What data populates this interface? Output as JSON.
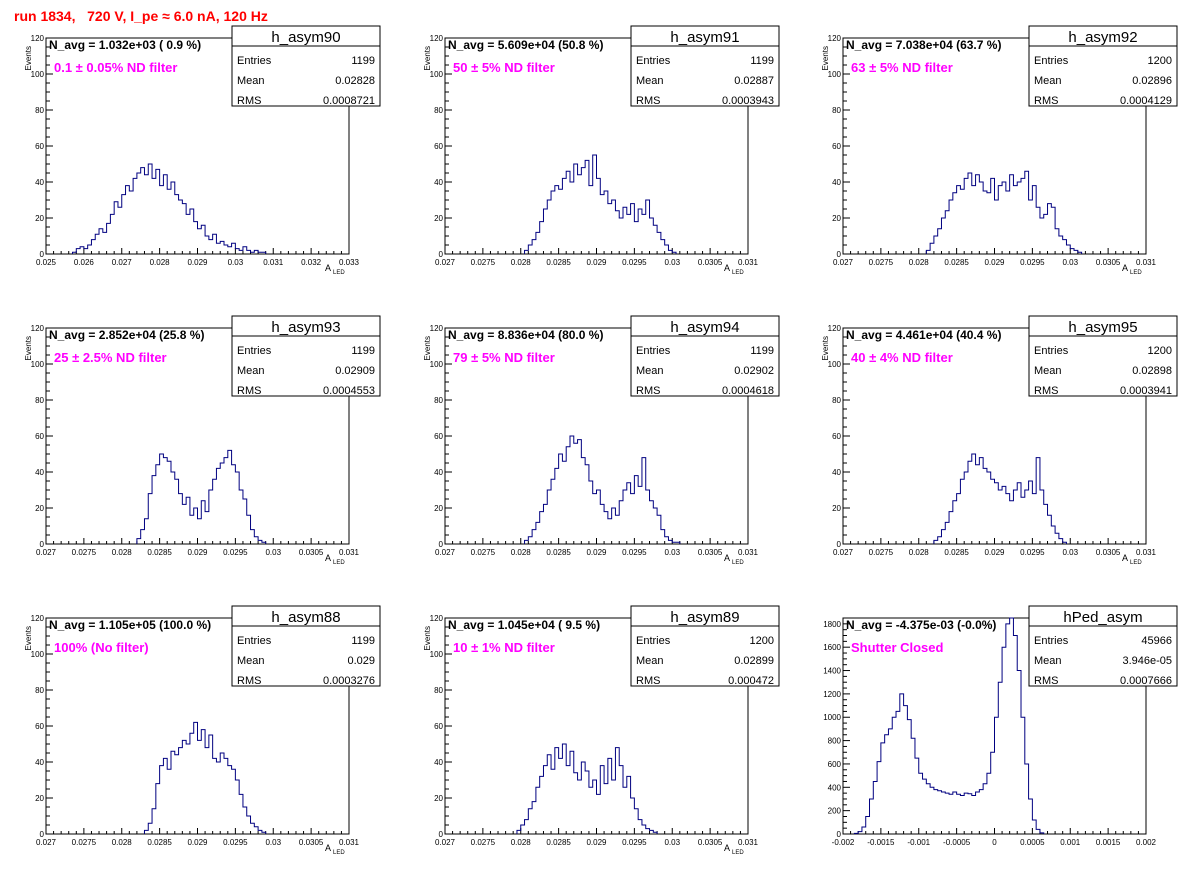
{
  "title": "run 1834,   720 V, I_pe ≈ 6.0 nA, 120 Hz",
  "colors": {
    "histogram": "#000080",
    "title": "#ff0000",
    "annotation": "#ff00ff",
    "frame": "#000000"
  },
  "chart_data": [
    {
      "type": "bar",
      "histname": "h_asym90",
      "stats": {
        "Entries": "1199",
        "Mean": "0.02828",
        "RMS": "0.0008721"
      },
      "navg_label": "N_avg = 1.032e+03 ( 0.9 %)",
      "filter_label": "0.1 ± 0.05% ND filter",
      "ylabel": "Events",
      "xlabel": "A",
      "xlabel_sub": "LED",
      "xlim": [
        0.025,
        0.033
      ],
      "ylim": [
        0,
        120
      ],
      "xticks": [
        0.025,
        0.026,
        0.027,
        0.028,
        0.029,
        0.03,
        0.031,
        0.032,
        0.033
      ],
      "xtick_labels": [
        "0.025",
        "0.026",
        "0.027",
        "0.028",
        "0.029",
        "0.03",
        "0.031",
        "0.032",
        "0.033"
      ],
      "yticks": [
        0,
        20,
        40,
        60,
        80,
        100,
        120
      ],
      "ytick_labels": [
        "0",
        "20",
        "40",
        "60",
        "80",
        "100",
        "120"
      ],
      "bin_start": 0.0257,
      "bin_width": 0.0001,
      "counts": [
        1,
        3,
        4,
        3,
        5,
        8,
        11,
        14,
        12,
        17,
        22,
        29,
        26,
        33,
        38,
        35,
        42,
        45,
        48,
        44,
        50,
        42,
        47,
        38,
        44,
        36,
        40,
        33,
        30,
        28,
        22,
        25,
        18,
        14,
        16,
        10,
        8,
        11,
        6,
        7,
        5,
        4,
        6,
        3,
        2,
        4,
        2,
        1,
        2,
        1,
        1
      ]
    },
    {
      "type": "bar",
      "histname": "h_asym91",
      "stats": {
        "Entries": "1199",
        "Mean": "0.02887",
        "RMS": "0.0003943"
      },
      "navg_label": "N_avg = 5.609e+04 (50.8 %)",
      "filter_label": "50 ± 5% ND filter",
      "ylabel": "Events",
      "xlabel": "A",
      "xlabel_sub": "LED",
      "xlim": [
        0.027,
        0.031
      ],
      "ylim": [
        0,
        120
      ],
      "xticks": [
        0.027,
        0.0275,
        0.028,
        0.0285,
        0.029,
        0.0295,
        0.03,
        0.0305,
        0.031
      ],
      "xtick_labels": [
        "0.027",
        "0.0275",
        "0.028",
        "0.0285",
        "0.029",
        "0.0295",
        "0.03",
        "0.0305",
        "0.031"
      ],
      "yticks": [
        0,
        20,
        40,
        60,
        80,
        100,
        120
      ],
      "ytick_labels": [
        "0",
        "20",
        "40",
        "60",
        "80",
        "100",
        "120"
      ],
      "bin_start": 0.02805,
      "bin_width": 5e-05,
      "counts": [
        2,
        5,
        8,
        12,
        18,
        25,
        30,
        35,
        38,
        36,
        42,
        46,
        40,
        50,
        44,
        48,
        52,
        38,
        55,
        42,
        33,
        35,
        28,
        30,
        24,
        20,
        26,
        22,
        28,
        18,
        25,
        22,
        30,
        20,
        16,
        12,
        8,
        5,
        2,
        1
      ]
    },
    {
      "type": "bar",
      "histname": "h_asym92",
      "stats": {
        "Entries": "1200",
        "Mean": "0.02896",
        "RMS": "0.0004129"
      },
      "navg_label": "N_avg = 7.038e+04 (63.7 %)",
      "filter_label": "63 ± 5% ND filter",
      "ylabel": "Events",
      "xlabel": "A",
      "xlabel_sub": "LED",
      "xlim": [
        0.027,
        0.031
      ],
      "ylim": [
        0,
        120
      ],
      "xticks": [
        0.027,
        0.0275,
        0.028,
        0.0285,
        0.029,
        0.0295,
        0.03,
        0.0305,
        0.031
      ],
      "xtick_labels": [
        "0.027",
        "0.0275",
        "0.028",
        "0.0285",
        "0.029",
        "0.0295",
        "0.03",
        "0.0305",
        "0.031"
      ],
      "yticks": [
        0,
        20,
        40,
        60,
        80,
        100,
        120
      ],
      "ytick_labels": [
        "0",
        "20",
        "40",
        "60",
        "80",
        "100",
        "120"
      ],
      "bin_start": 0.0281,
      "bin_width": 5e-05,
      "counts": [
        2,
        6,
        10,
        14,
        20,
        24,
        30,
        34,
        38,
        36,
        42,
        45,
        38,
        44,
        40,
        35,
        34,
        42,
        30,
        38,
        40,
        35,
        44,
        38,
        40,
        42,
        46,
        30,
        38,
        26,
        20,
        22,
        28,
        26,
        14,
        10,
        8,
        5,
        3,
        2,
        1
      ]
    },
    {
      "type": "bar",
      "histname": "h_asym93",
      "stats": {
        "Entries": "1199",
        "Mean": "0.02909",
        "RMS": "0.0004553"
      },
      "navg_label": "N_avg = 2.852e+04 (25.8 %)",
      "filter_label": "25 ± 2.5% ND filter",
      "ylabel": "Events",
      "xlabel": "A",
      "xlabel_sub": "LED",
      "xlim": [
        0.027,
        0.031
      ],
      "ylim": [
        0,
        120
      ],
      "xticks": [
        0.027,
        0.0275,
        0.028,
        0.0285,
        0.029,
        0.0295,
        0.03,
        0.0305,
        0.031
      ],
      "xtick_labels": [
        "0.027",
        "0.0275",
        "0.028",
        "0.0285",
        "0.029",
        "0.0295",
        "0.03",
        "0.0305",
        "0.031"
      ],
      "yticks": [
        0,
        20,
        40,
        60,
        80,
        100,
        120
      ],
      "ytick_labels": [
        "0",
        "20",
        "40",
        "60",
        "80",
        "100",
        "120"
      ],
      "bin_start": 0.0282,
      "bin_width": 5e-05,
      "counts": [
        3,
        8,
        14,
        28,
        38,
        44,
        50,
        48,
        46,
        40,
        36,
        28,
        22,
        26,
        16,
        20,
        14,
        24,
        18,
        30,
        36,
        42,
        45,
        48,
        52,
        44,
        40,
        30,
        25,
        16,
        8,
        4,
        2,
        1
      ]
    },
    {
      "type": "bar",
      "histname": "h_asym94",
      "stats": {
        "Entries": "1199",
        "Mean": "0.02902",
        "RMS": "0.0004618"
      },
      "navg_label": "N_avg = 8.836e+04 (80.0 %)",
      "filter_label": "79 ± 5% ND filter",
      "ylabel": "Events",
      "xlabel": "A",
      "xlabel_sub": "LED",
      "xlim": [
        0.027,
        0.031
      ],
      "ylim": [
        0,
        120
      ],
      "xticks": [
        0.027,
        0.0275,
        0.028,
        0.0285,
        0.029,
        0.0295,
        0.03,
        0.0305,
        0.031
      ],
      "xtick_labels": [
        "0.027",
        "0.0275",
        "0.028",
        "0.0285",
        "0.029",
        "0.0295",
        "0.03",
        "0.0305",
        "0.031"
      ],
      "yticks": [
        0,
        20,
        40,
        60,
        80,
        100,
        120
      ],
      "ytick_labels": [
        "0",
        "20",
        "40",
        "60",
        "80",
        "100",
        "120"
      ],
      "bin_start": 0.02805,
      "bin_width": 5e-05,
      "counts": [
        2,
        4,
        8,
        12,
        18,
        22,
        30,
        36,
        42,
        50,
        46,
        54,
        60,
        56,
        58,
        48,
        44,
        35,
        28,
        30,
        22,
        18,
        14,
        20,
        16,
        24,
        30,
        34,
        28,
        38,
        32,
        48,
        30,
        24,
        20,
        16,
        8,
        4,
        2,
        1,
        1
      ]
    },
    {
      "type": "bar",
      "histname": "h_asym95",
      "stats": {
        "Entries": "1200",
        "Mean": "0.02898",
        "RMS": "0.0003941"
      },
      "navg_label": "N_avg = 4.461e+04 (40.4 %)",
      "filter_label": "40 ± 4% ND filter",
      "ylabel": "Events",
      "xlabel": "A",
      "xlabel_sub": "LED",
      "xlim": [
        0.027,
        0.031
      ],
      "ylim": [
        0,
        120
      ],
      "xticks": [
        0.027,
        0.0275,
        0.028,
        0.0285,
        0.029,
        0.0295,
        0.03,
        0.0305,
        0.031
      ],
      "xtick_labels": [
        "0.027",
        "0.0275",
        "0.028",
        "0.0285",
        "0.029",
        "0.0295",
        "0.03",
        "0.0305",
        "0.031"
      ],
      "yticks": [
        0,
        20,
        40,
        60,
        80,
        100,
        120
      ],
      "ytick_labels": [
        "0",
        "20",
        "40",
        "60",
        "80",
        "100",
        "120"
      ],
      "bin_start": 0.0282,
      "bin_width": 5e-05,
      "counts": [
        2,
        4,
        8,
        12,
        18,
        24,
        28,
        36,
        40,
        46,
        50,
        44,
        48,
        42,
        40,
        36,
        34,
        30,
        32,
        28,
        24,
        30,
        34,
        26,
        30,
        35,
        28,
        48,
        30,
        22,
        16,
        10,
        6,
        3,
        1
      ]
    },
    {
      "type": "bar",
      "histname": "h_asym88",
      "stats": {
        "Entries": "1199",
        "Mean": "0.029",
        "RMS": "0.0003276"
      },
      "navg_label": "N_avg = 1.105e+05 (100.0 %)",
      "filter_label": "100% (No filter)",
      "ylabel": "Events",
      "xlabel": "A",
      "xlabel_sub": "LED",
      "xlim": [
        0.027,
        0.031
      ],
      "ylim": [
        0,
        120
      ],
      "xticks": [
        0.027,
        0.0275,
        0.028,
        0.0285,
        0.029,
        0.0295,
        0.03,
        0.0305,
        0.031
      ],
      "xtick_labels": [
        "0.027",
        "0.0275",
        "0.028",
        "0.0285",
        "0.029",
        "0.0295",
        "0.03",
        "0.0305",
        "0.031"
      ],
      "yticks": [
        0,
        20,
        40,
        60,
        80,
        100,
        120
      ],
      "ytick_labels": [
        "0",
        "20",
        "40",
        "60",
        "80",
        "100",
        "120"
      ],
      "bin_start": 0.0283,
      "bin_width": 5e-05,
      "counts": [
        2,
        6,
        14,
        28,
        38,
        42,
        36,
        46,
        44,
        48,
        52,
        50,
        56,
        62,
        52,
        58,
        48,
        55,
        42,
        40,
        45,
        42,
        38,
        36,
        30,
        22,
        15,
        10,
        6,
        4,
        2,
        1
      ]
    },
    {
      "type": "bar",
      "histname": "h_asym89",
      "stats": {
        "Entries": "1200",
        "Mean": "0.02899",
        "RMS": "0.000472"
      },
      "navg_label": "N_avg = 1.045e+04 ( 9.5 %)",
      "filter_label": "10 ± 1% ND filter",
      "ylabel": "Events",
      "xlabel": "A",
      "xlabel_sub": "LED",
      "xlim": [
        0.027,
        0.031
      ],
      "ylim": [
        0,
        120
      ],
      "xticks": [
        0.027,
        0.0275,
        0.028,
        0.0285,
        0.029,
        0.0295,
        0.03,
        0.0305,
        0.031
      ],
      "xtick_labels": [
        "0.027",
        "0.0275",
        "0.028",
        "0.0285",
        "0.029",
        "0.0295",
        "0.03",
        "0.0305",
        "0.031"
      ],
      "yticks": [
        0,
        20,
        40,
        60,
        80,
        100,
        120
      ],
      "ytick_labels": [
        "0",
        "20",
        "40",
        "60",
        "80",
        "100",
        "120"
      ],
      "bin_start": 0.02795,
      "bin_width": 5e-05,
      "counts": [
        2,
        5,
        8,
        14,
        18,
        26,
        32,
        38,
        44,
        36,
        48,
        42,
        50,
        38,
        46,
        34,
        30,
        40,
        35,
        26,
        30,
        22,
        38,
        28,
        42,
        30,
        48,
        38,
        26,
        32,
        20,
        14,
        8,
        5,
        3,
        2,
        1
      ]
    },
    {
      "type": "bar",
      "histname": "hPed_asym",
      "stats": {
        "Entries": "45966",
        "Mean": "3.946e-05",
        "RMS": "0.0007666"
      },
      "navg_label": "N_avg = -4.375e-03 (-0.0%)",
      "filter_label": "Shutter Closed",
      "ylabel": "",
      "xlabel": "",
      "xlabel_sub": "",
      "xlim": [
        -0.002,
        0.002
      ],
      "ylim": [
        0,
        1850
      ],
      "xticks": [
        -0.002,
        -0.0015,
        -0.001,
        -0.0005,
        0,
        0.0005,
        0.001,
        0.0015,
        0.002
      ],
      "xtick_labels": [
        "-0.002",
        "-0.0015",
        "-0.001",
        "-0.0005",
        "0",
        "0.0005",
        "0.001",
        "0.0015",
        "0.002"
      ],
      "yticks": [
        0,
        200,
        400,
        600,
        800,
        1000,
        1200,
        1400,
        1600,
        1800
      ],
      "ytick_labels": [
        "0",
        "200",
        "400",
        "600",
        "800",
        "1000",
        "1200",
        "1400",
        "1600",
        "1800"
      ],
      "bin_start": -0.00185,
      "bin_width": 5e-05,
      "counts": [
        5,
        20,
        60,
        150,
        300,
        450,
        620,
        780,
        850,
        900,
        1000,
        1050,
        1200,
        1100,
        980,
        820,
        650,
        520,
        470,
        430,
        400,
        380,
        370,
        360,
        350,
        340,
        360,
        340,
        330,
        350,
        345,
        330,
        360,
        380,
        430,
        520,
        700,
        1000,
        1300,
        1600,
        1800,
        1850,
        1700,
        1400,
        1000,
        600,
        300,
        120,
        40,
        10
      ]
    }
  ]
}
